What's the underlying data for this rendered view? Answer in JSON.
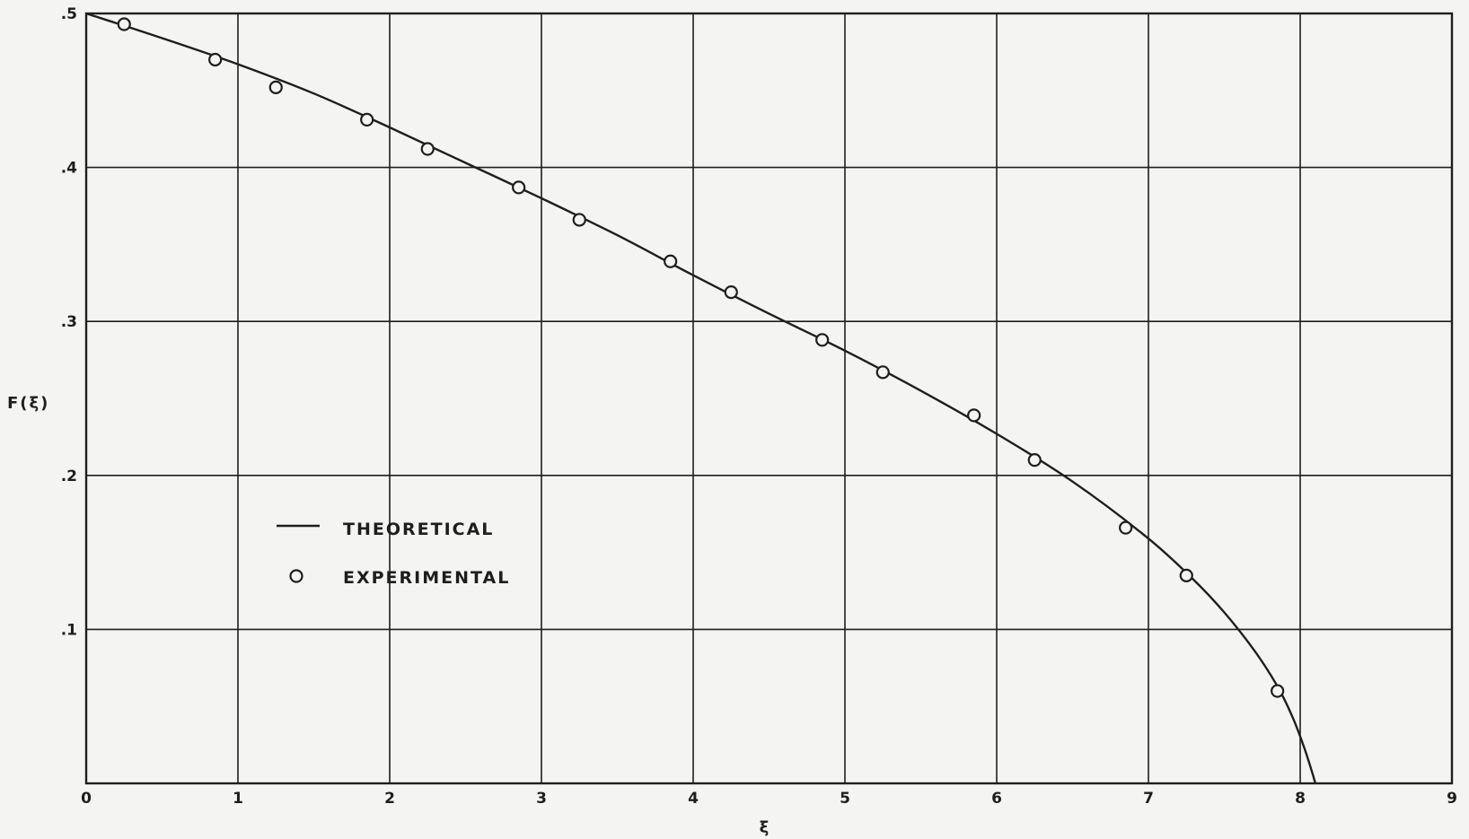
{
  "chart_data": {
    "type": "line",
    "title": "",
    "xlabel": "ξ",
    "ylabel": "F(ξ)",
    "xlim": [
      0,
      9
    ],
    "ylim": [
      0,
      0.5
    ],
    "grid": true,
    "x_ticks": [
      {
        "value": 0,
        "label": "0"
      },
      {
        "value": 1,
        "label": "1"
      },
      {
        "value": 2,
        "label": "2"
      },
      {
        "value": 3,
        "label": "3"
      },
      {
        "value": 4,
        "label": "4"
      },
      {
        "value": 5,
        "label": "5"
      },
      {
        "value": 6,
        "label": "6"
      },
      {
        "value": 7,
        "label": "7"
      },
      {
        "value": 8,
        "label": "8"
      },
      {
        "value": 9,
        "label": "9"
      }
    ],
    "y_ticks": [
      {
        "value": 0.1,
        "label": ".1"
      },
      {
        "value": 0.2,
        "label": ".2"
      },
      {
        "value": 0.3,
        "label": ".3"
      },
      {
        "value": 0.4,
        "label": ".4"
      },
      {
        "value": 0.5,
        "label": ".5"
      }
    ],
    "legend": {
      "placement": "lower-left",
      "entries": [
        {
          "label": "THEORETICAL",
          "style": "line",
          "marker_glyph": ""
        },
        {
          "label": "EXPERIMENTAL",
          "style": "marker",
          "marker_glyph": "O"
        }
      ]
    },
    "series": [
      {
        "name": "THEORETICAL",
        "style": "line",
        "x": [
          0,
          0.5,
          1.0,
          1.5,
          2.0,
          2.5,
          3.0,
          3.5,
          4.0,
          4.5,
          5.0,
          5.5,
          6.0,
          6.5,
          7.0,
          7.3,
          7.5,
          7.7,
          7.85,
          7.95,
          8.02,
          8.07,
          8.1
        ],
        "y": [
          0.5,
          0.484,
          0.467,
          0.448,
          0.426,
          0.403,
          0.38,
          0.356,
          0.33,
          0.305,
          0.281,
          0.255,
          0.227,
          0.196,
          0.159,
          0.132,
          0.111,
          0.086,
          0.063,
          0.043,
          0.025,
          0.01,
          0.0
        ]
      },
      {
        "name": "EXPERIMENTAL",
        "style": "marker",
        "x": [
          0.25,
          0.85,
          1.25,
          1.85,
          2.25,
          2.85,
          3.25,
          3.85,
          4.25,
          4.85,
          5.25,
          5.85,
          6.25,
          6.85,
          7.25,
          7.85
        ],
        "y": [
          0.493,
          0.47,
          0.452,
          0.431,
          0.412,
          0.387,
          0.366,
          0.339,
          0.319,
          0.288,
          0.267,
          0.239,
          0.21,
          0.166,
          0.135,
          0.06
        ]
      }
    ],
    "colors": {
      "ink": "#1e1e1e",
      "paper": "#f4f4f2"
    }
  }
}
